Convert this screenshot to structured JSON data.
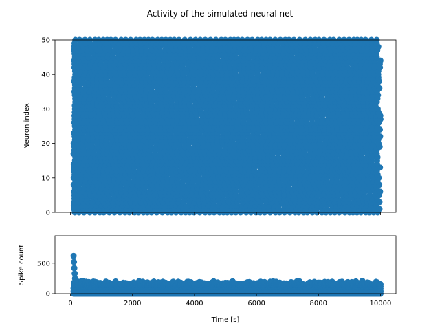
{
  "chart_data": [
    {
      "type": "scatter",
      "title": "Activity of the simulated neural net",
      "xlabel": "",
      "ylabel": "Neuron index",
      "xlim": [
        -500,
        10500
      ],
      "ylim": [
        0,
        50
      ],
      "xticks": [
        0,
        2000,
        4000,
        6000,
        8000,
        10000
      ],
      "xtick_labels_visible": false,
      "yticks": [
        0,
        10,
        20,
        30,
        40,
        50
      ],
      "ytick_labels": [
        "0",
        "10",
        "20",
        "30",
        "40",
        "50"
      ],
      "neurons": 50,
      "time_range": [
        100,
        10000
      ],
      "mean_interval": 150,
      "color": "#1f77b4",
      "grid": false
    },
    {
      "type": "scatter",
      "xlabel": "Time [s]",
      "ylabel": "Spike count",
      "xlim": [
        -500,
        10500
      ],
      "ylim": [
        0,
        950
      ],
      "xticks": [
        0,
        2000,
        4000,
        6000,
        8000,
        10000
      ],
      "xtick_labels": [
        "0",
        "2000",
        "4000",
        "6000",
        "8000",
        "10000"
      ],
      "yticks": [
        0,
        500
      ],
      "ytick_labels": [
        "0",
        "500"
      ],
      "initial_peak": 620,
      "baseline_range": [
        80,
        210
      ],
      "color": "#1f77b4",
      "grid": false
    }
  ]
}
